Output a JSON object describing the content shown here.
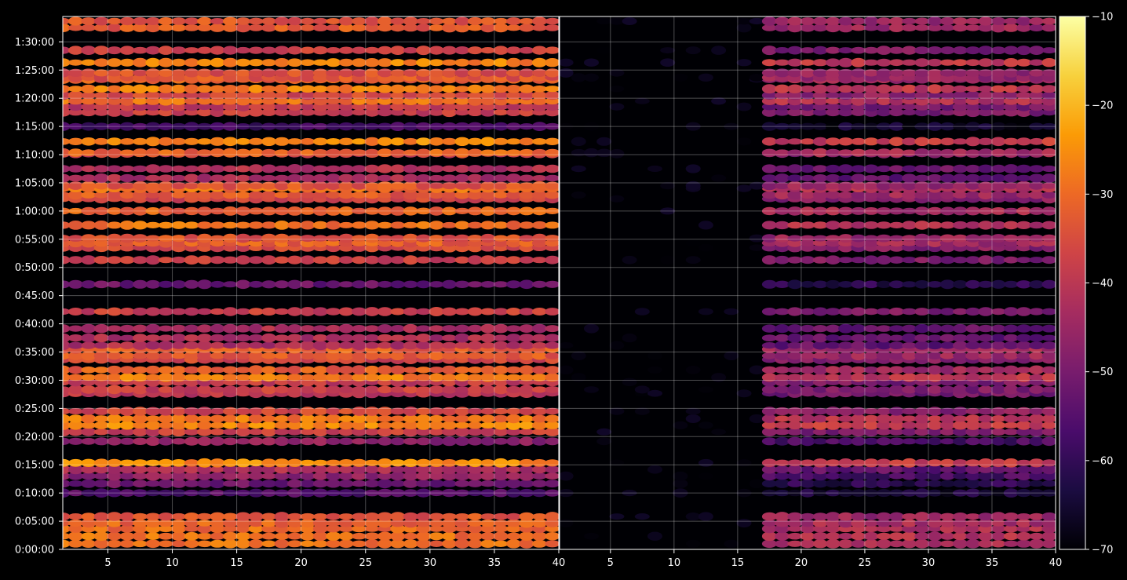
{
  "chart_data": {
    "type": "heatmap",
    "title": "",
    "xlabel": "",
    "ylabel": "",
    "grid": true,
    "panels": [
      {
        "name": "",
        "xlim": [
          1.5,
          40
        ],
        "x_ticks": [
          5,
          10,
          15,
          20,
          25,
          30,
          35,
          40
        ],
        "x_tick_labels": [
          "5",
          "10",
          "15",
          "20",
          "25",
          "30",
          "35",
          "40"
        ],
        "intensity_range_dB": [
          -60,
          -25
        ],
        "columns_active_from": 1.5
      },
      {
        "name": "",
        "xlim": [
          1,
          40
        ],
        "x_ticks": [
          5,
          10,
          15,
          20,
          25,
          30,
          35,
          40
        ],
        "x_tick_labels": [
          "5",
          "10",
          "15",
          "20",
          "25",
          "30",
          "35",
          "40"
        ],
        "intensity_range_dB": [
          -68,
          -38
        ],
        "columns_active_from": 17
      }
    ],
    "y_axis": {
      "unit": "h:mm:ss",
      "ylim_seconds": [
        0,
        5670
      ],
      "ticks_seconds": [
        0,
        300,
        600,
        900,
        1200,
        1500,
        1800,
        2100,
        2400,
        2700,
        3000,
        3300,
        3600,
        3900,
        4200,
        4500,
        4800,
        5100,
        5400
      ],
      "tick_labels": [
        "0:00:00",
        "0:05:00",
        "0:10:00",
        "0:15:00",
        "0:20:00",
        "0:25:00",
        "0:30:00",
        "0:35:00",
        "0:40:00",
        "0:45:00",
        "0:50:00",
        "0:55:00",
        "1:00:00",
        "1:05:00",
        "1:10:00",
        "1:15:00",
        "1:20:00",
        "1:25:00",
        "1:30:00"
      ]
    },
    "rows_seconds": [
      60,
      140,
      220,
      280,
      350,
      600,
      700,
      780,
      850,
      920,
      1150,
      1250,
      1320,
      1390,
      1470,
      1660,
      1700,
      1780,
      1830,
      1910,
      2020,
      2060,
      2130,
      2170,
      2250,
      2350,
      2530,
      2820,
      3080,
      3210,
      3260,
      3310,
      3450,
      3600,
      3730,
      3770,
      3840,
      3870,
      3950,
      4050,
      4210,
      4220,
      4340,
      4500,
      4650,
      4710,
      4770,
      4830,
      4900,
      5000,
      5020,
      5070,
      5180,
      5310,
      5550,
      5620
    ],
    "row_intensity_dB": [
      -30,
      -30,
      -31,
      -32,
      -35,
      -60,
      -56,
      -50,
      -45,
      -26,
      -50,
      -40,
      -26,
      -29,
      -38,
      -42,
      -40,
      -41,
      -28,
      -33,
      -38,
      -34,
      -33,
      -45,
      -45,
      -45,
      -40,
      -56,
      -40,
      -38,
      -33,
      -35,
      -30,
      -32,
      -38,
      -34,
      -30,
      -35,
      -45,
      -44,
      -40,
      -32,
      -26,
      -62,
      -40,
      -42,
      -30,
      -37,
      -28,
      -33,
      -35,
      -36,
      -27,
      -40,
      -34,
      -35
    ],
    "colorbar": {
      "colormap": "inferno",
      "range": [
        -70,
        -10
      ],
      "ticks": [
        -10,
        -20,
        -30,
        -40,
        -50,
        -60,
        -70
      ],
      "tick_labels": [
        "−10",
        "−20",
        "−30",
        "−40",
        "−50",
        "−60",
        "−70"
      ],
      "stops": [
        "#000004",
        "#1b0c41",
        "#4a0c6b",
        "#781c6d",
        "#a52c60",
        "#cf4446",
        "#ed6925",
        "#fb9b06",
        "#f7d13d",
        "#fcffa4"
      ]
    }
  }
}
